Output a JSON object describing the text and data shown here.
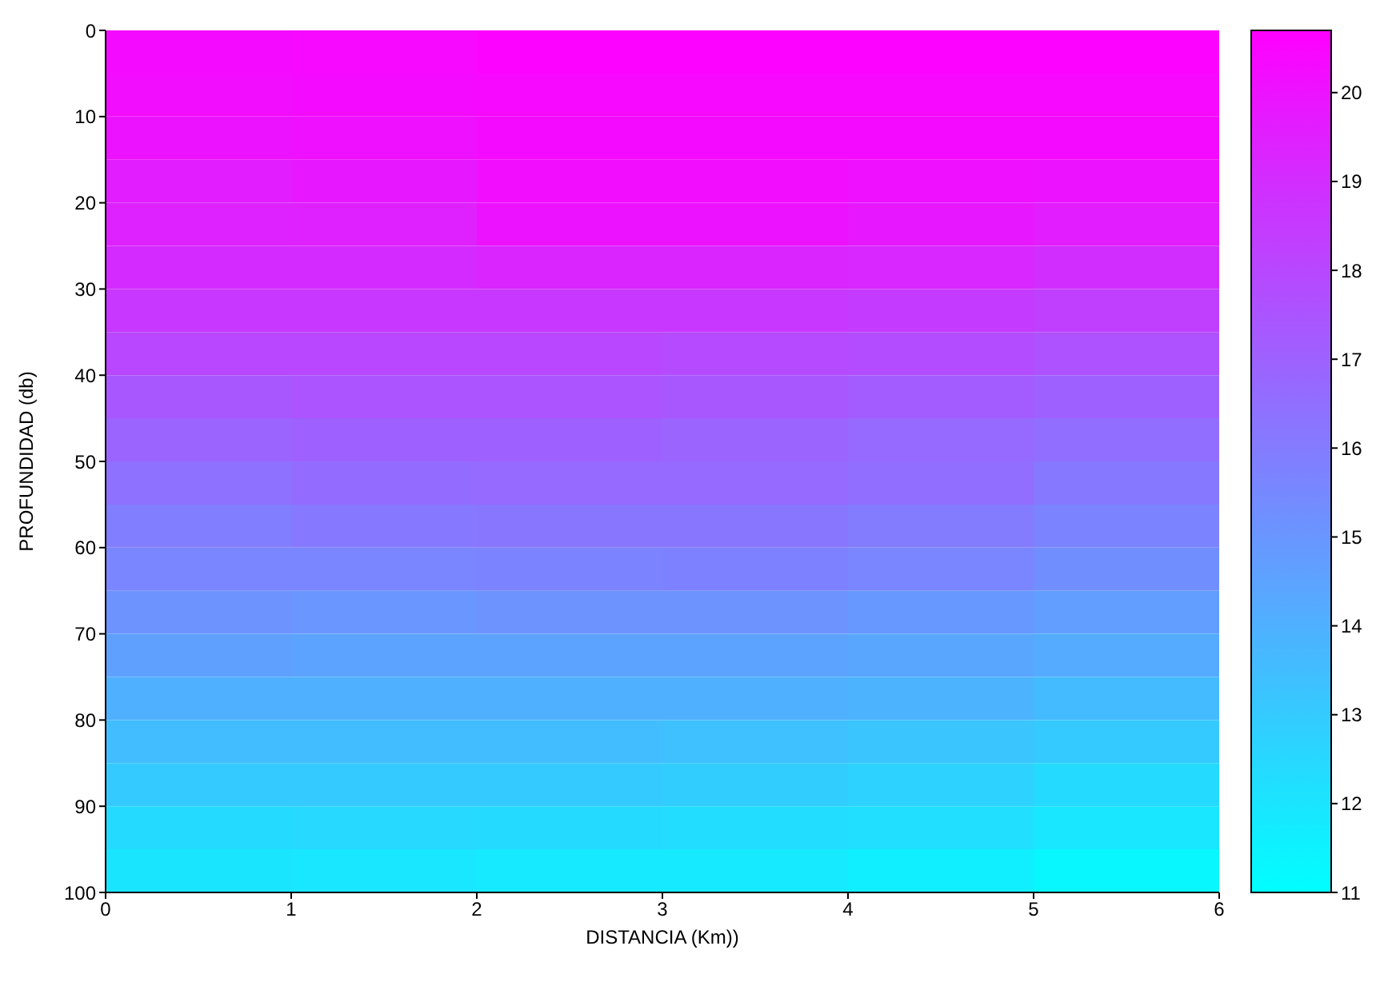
{
  "chart_data": {
    "type": "heatmap",
    "xlabel": "DISTANCIA (Km))",
    "ylabel": "PROFUNDIDAD (db)",
    "xlim": [
      0,
      6
    ],
    "xticks": [
      0,
      1,
      2,
      3,
      4,
      5,
      6
    ],
    "ylim": [
      100,
      0
    ],
    "yticks": [
      0,
      10,
      20,
      30,
      40,
      50,
      60,
      70,
      80,
      90,
      100
    ],
    "clim": [
      11,
      20.7
    ],
    "cticks": [
      11,
      12,
      13,
      14,
      15,
      16,
      17,
      18,
      19,
      20
    ],
    "cells": [
      [
        20.3,
        20.4,
        20.6,
        20.6,
        20.6,
        20.6
      ],
      [
        20.2,
        20.3,
        20.4,
        20.4,
        20.4,
        20.4
      ],
      [
        20.0,
        20.1,
        20.3,
        20.3,
        20.3,
        20.3
      ],
      [
        19.6,
        19.8,
        20.2,
        20.2,
        20.1,
        20.0
      ],
      [
        19.4,
        19.5,
        20.0,
        20.0,
        19.8,
        19.6
      ],
      [
        19.1,
        19.1,
        19.3,
        19.3,
        19.2,
        19.0
      ],
      [
        18.6,
        18.6,
        18.6,
        18.6,
        18.5,
        18.3
      ],
      [
        18.0,
        18.0,
        18.0,
        17.9,
        17.8,
        17.6
      ],
      [
        17.4,
        17.5,
        17.5,
        17.4,
        17.2,
        17.0
      ],
      [
        16.9,
        17.0,
        17.0,
        16.9,
        16.7,
        16.5
      ],
      [
        16.4,
        16.6,
        16.7,
        16.7,
        16.5,
        16.1
      ],
      [
        15.9,
        16.1,
        16.2,
        16.2,
        16.0,
        15.7
      ],
      [
        15.6,
        15.6,
        15.7,
        15.8,
        15.6,
        15.3
      ],
      [
        15.1,
        15.0,
        15.1,
        15.1,
        14.9,
        14.7
      ],
      [
        14.6,
        14.5,
        14.5,
        14.5,
        14.4,
        14.2
      ],
      [
        14.0,
        14.0,
        14.0,
        14.0,
        13.9,
        13.6
      ],
      [
        13.5,
        13.5,
        13.5,
        13.4,
        13.2,
        13.0
      ],
      [
        13.0,
        13.0,
        13.0,
        12.9,
        12.7,
        12.4
      ],
      [
        12.4,
        12.5,
        12.4,
        12.3,
        12.2,
        11.9
      ],
      [
        12.0,
        11.9,
        11.8,
        11.8,
        11.6,
        11.3
      ]
    ]
  }
}
